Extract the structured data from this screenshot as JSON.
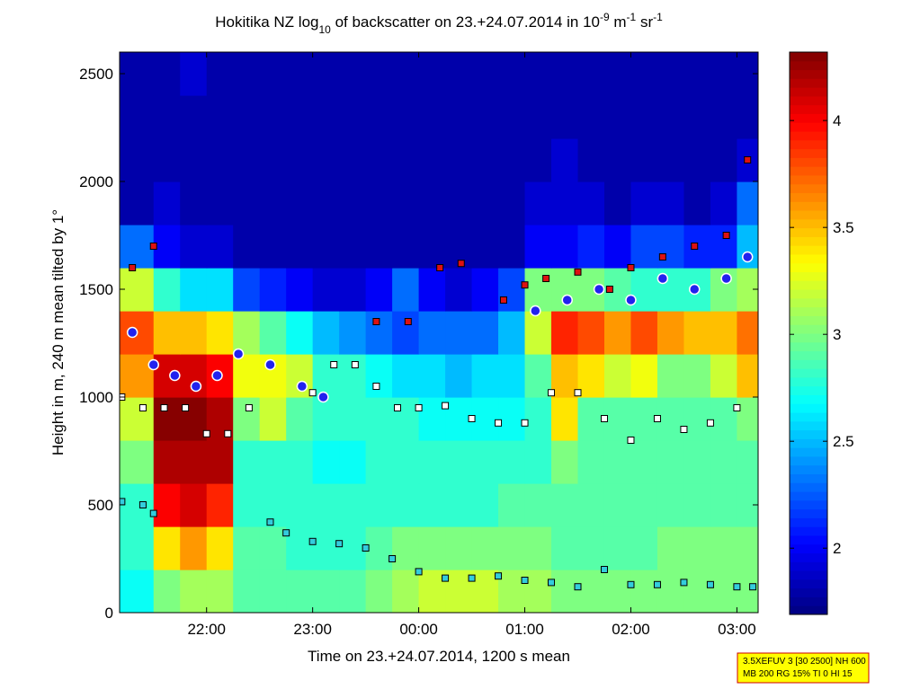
{
  "chart_data": {
    "type": "heatmap",
    "title": [
      "Hokitika NZ log",
      "10",
      " of backscatter on 23.+24.07.2014 in 10",
      "-9",
      " m",
      "-1",
      " sr",
      "-1"
    ],
    "xlabel": "Time on 23.+24.07.2014, 1200 s mean",
    "ylabel": "Height in m, 240 m mean tilted by 1°",
    "xlim": [
      21.18,
      27.2
    ],
    "xticks": [
      {
        "value": 22,
        "label": "22:00"
      },
      {
        "value": 23,
        "label": "23:00"
      },
      {
        "value": 24,
        "label": "00:00"
      },
      {
        "value": 25,
        "label": "01:00"
      },
      {
        "value": 26,
        "label": "02:00"
      },
      {
        "value": 27,
        "label": "03:00"
      }
    ],
    "ylim": [
      0,
      2600
    ],
    "yticks": [
      0,
      500,
      1000,
      1500,
      2000,
      2500
    ],
    "colormap": "jet",
    "clim": [
      1.69,
      4.32
    ],
    "cticks": [
      2,
      2.5,
      3,
      3.5,
      4
    ],
    "x_edges": [
      21.18,
      21.5,
      21.75,
      22,
      22.25,
      22.5,
      22.75,
      23,
      23.25,
      23.5,
      23.75,
      24,
      24.25,
      24.5,
      24.75,
      25,
      25.25,
      25.5,
      25.75,
      26,
      26.25,
      26.5,
      26.75,
      27,
      27.2
    ],
    "y_edges": [
      0,
      200,
      400,
      600,
      800,
      1000,
      1200,
      1400,
      1600,
      1800,
      2000,
      2200,
      2400,
      2600
    ],
    "z": [
      [
        2.7,
        3.0,
        3.1,
        3.1,
        2.9,
        2.9,
        2.9,
        2.9,
        2.9,
        3.0,
        3.1,
        3.2,
        3.2,
        3.2,
        3.1,
        3.1,
        3.0,
        3.0,
        3.0,
        3.0,
        3.0,
        3.0,
        3.0,
        3.0
      ],
      [
        2.8,
        3.4,
        3.6,
        3.4,
        2.9,
        2.9,
        2.8,
        2.8,
        2.8,
        2.9,
        3.0,
        3.0,
        3.0,
        3.0,
        3.0,
        3.0,
        2.9,
        2.9,
        2.9,
        2.9,
        3.0,
        3.0,
        3.0,
        3.0
      ],
      [
        2.8,
        4.0,
        4.1,
        3.9,
        2.8,
        2.8,
        2.8,
        2.8,
        2.8,
        2.8,
        2.8,
        2.8,
        2.8,
        2.8,
        2.9,
        2.9,
        2.9,
        2.9,
        2.9,
        2.9,
        2.9,
        2.9,
        2.9,
        2.9
      ],
      [
        3.0,
        4.2,
        4.2,
        4.2,
        2.8,
        2.8,
        2.8,
        2.7,
        2.7,
        2.8,
        2.8,
        2.8,
        2.8,
        2.8,
        2.8,
        2.8,
        3.0,
        2.9,
        2.9,
        2.9,
        2.9,
        2.9,
        2.9,
        2.9
      ],
      [
        3.2,
        4.3,
        4.3,
        4.2,
        3.0,
        3.2,
        2.9,
        2.8,
        2.8,
        2.8,
        2.8,
        2.7,
        2.7,
        2.7,
        2.7,
        2.8,
        3.4,
        2.9,
        2.9,
        2.9,
        2.9,
        2.9,
        2.9,
        3.0
      ],
      [
        3.6,
        4.1,
        4.1,
        4.0,
        3.3,
        3.3,
        3.2,
        2.8,
        2.8,
        2.7,
        2.6,
        2.6,
        2.5,
        2.6,
        2.6,
        2.9,
        3.5,
        3.4,
        3.2,
        3.3,
        3.0,
        3.0,
        3.2,
        3.5
      ],
      [
        3.8,
        3.5,
        3.5,
        3.4,
        3.1,
        2.9,
        2.7,
        2.5,
        2.4,
        2.3,
        2.2,
        2.3,
        2.3,
        2.3,
        2.5,
        3.2,
        3.9,
        3.8,
        3.6,
        3.8,
        3.6,
        3.5,
        3.5,
        3.7
      ],
      [
        3.2,
        2.8,
        2.6,
        2.6,
        2.2,
        2.1,
        2.0,
        1.9,
        1.9,
        2.0,
        2.3,
        2.0,
        1.9,
        2.0,
        2.2,
        3.0,
        3.0,
        3.0,
        2.9,
        2.8,
        2.8,
        2.8,
        3.0,
        3.1
      ],
      [
        2.3,
        2.0,
        1.9,
        1.9,
        1.8,
        1.8,
        1.8,
        1.8,
        1.8,
        1.8,
        1.8,
        1.8,
        1.8,
        1.8,
        1.8,
        2.0,
        2.0,
        2.1,
        2.0,
        2.2,
        2.2,
        2.1,
        2.1,
        2.5
      ],
      [
        1.8,
        1.9,
        1.8,
        1.8,
        1.8,
        1.8,
        1.8,
        1.8,
        1.8,
        1.8,
        1.8,
        1.8,
        1.8,
        1.8,
        1.8,
        1.9,
        1.9,
        1.9,
        1.8,
        1.9,
        1.9,
        1.8,
        1.9,
        2.3
      ],
      [
        1.8,
        1.8,
        1.8,
        1.8,
        1.8,
        1.8,
        1.8,
        1.8,
        1.8,
        1.8,
        1.8,
        1.8,
        1.8,
        1.8,
        1.8,
        1.8,
        1.9,
        1.8,
        1.8,
        1.8,
        1.8,
        1.8,
        1.8,
        1.9
      ],
      [
        1.8,
        1.8,
        1.8,
        1.8,
        1.8,
        1.8,
        1.8,
        1.8,
        1.8,
        1.8,
        1.8,
        1.8,
        1.8,
        1.8,
        1.8,
        1.8,
        1.8,
        1.8,
        1.8,
        1.8,
        1.8,
        1.8,
        1.8,
        1.8
      ],
      [
        1.8,
        1.8,
        1.9,
        1.8,
        1.8,
        1.8,
        1.8,
        1.8,
        1.8,
        1.8,
        1.8,
        1.8,
        1.8,
        1.8,
        1.8,
        1.8,
        1.8,
        1.8,
        1.8,
        1.8,
        1.8,
        1.8,
        1.8,
        1.8
      ]
    ],
    "overlay": [
      {
        "type": "scatter",
        "marker": "square",
        "color": "#33ccdd",
        "edgecolor": "#000000",
        "x": [
          21.2,
          21.4,
          21.5,
          22.6,
          22.75,
          23,
          23.25,
          23.5,
          23.75,
          24,
          24.25,
          24.5,
          24.75,
          25,
          25.25,
          25.5,
          25.75,
          26,
          26.25,
          26.5,
          26.75,
          27,
          27.15
        ],
        "values": [
          515,
          500,
          460,
          420,
          370,
          330,
          320,
          300,
          250,
          190,
          160,
          160,
          170,
          150,
          140,
          120,
          200,
          130,
          130,
          140,
          130,
          120,
          120
        ]
      },
      {
        "type": "scatter",
        "marker": "square",
        "color": "#ffffff",
        "edgecolor": "#000000",
        "x": [
          21.2,
          21.4,
          21.6,
          21.8,
          22,
          22.2,
          22.4,
          23,
          23.2,
          23.4,
          23.6,
          23.8,
          24,
          24.25,
          24.5,
          24.75,
          25,
          25.25,
          25.5,
          25.75,
          26,
          26.25,
          26.5,
          26.75,
          27
        ],
        "values": [
          1000,
          950,
          950,
          950,
          830,
          830,
          950,
          1020,
          1150,
          1150,
          1050,
          950,
          950,
          960,
          900,
          880,
          880,
          1020,
          1020,
          900,
          800,
          900,
          850,
          880,
          950
        ]
      },
      {
        "type": "scatter",
        "marker": "square",
        "color": "#dd1111",
        "edgecolor": "#000000",
        "x": [
          21.3,
          21.5,
          23.6,
          23.9,
          24.2,
          24.4,
          24.8,
          25,
          25.2,
          25.5,
          25.8,
          26,
          26.3,
          26.6,
          26.9,
          27.1
        ],
        "values": [
          1600,
          1700,
          1350,
          1350,
          1600,
          1620,
          1450,
          1520,
          1550,
          1580,
          1500,
          1600,
          1650,
          1700,
          1750,
          2100
        ]
      },
      {
        "type": "scatter",
        "marker": "circle",
        "color": "#2222ee",
        "edgecolor": "#ffffff",
        "x": [
          21.3,
          21.5,
          21.7,
          21.9,
          22.1,
          22.3,
          22.6,
          22.9,
          23.1,
          25.1,
          25.4,
          25.7,
          26,
          26.3,
          26.6,
          26.9,
          27.1
        ],
        "values": [
          1300,
          1150,
          1100,
          1050,
          1100,
          1200,
          1150,
          1050,
          1000,
          1400,
          1450,
          1500,
          1450,
          1550,
          1500,
          1550,
          1650
        ]
      }
    ],
    "annotation": [
      "3.5XEFUV 3 [30 2500] NH 600",
      "MB 200 RG 15% TI 0 HI 15"
    ]
  }
}
